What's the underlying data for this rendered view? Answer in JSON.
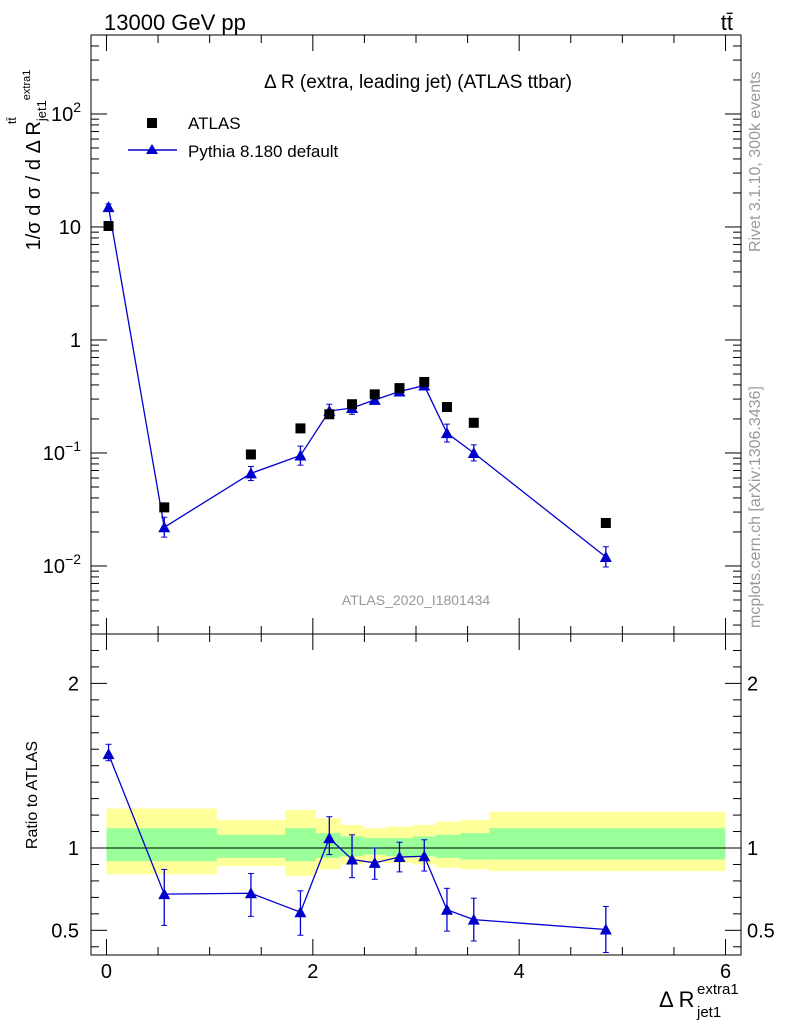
{
  "header": {
    "left": "13000 GeV pp",
    "right": "tt̄"
  },
  "side_labels": {
    "rivet": "Rivet 3.1.10,  300k events",
    "mcplots": "mcplots.cern.ch [arXiv:1306.3436]"
  },
  "plot_title": "Δ R (extra, leading jet) (ATLAS ttbar)",
  "watermark": "ATLAS_2020_I1801434",
  "legend": {
    "atlas": "ATLAS",
    "pythia": "Pythia 8.180 default"
  },
  "y_axis_main": {
    "ylabel_main": "d σ / d Δ R",
    "ylabel_prefix": "1/σ",
    "ylabel_sup_ttbar": "tt̄",
    "ylabel_sub": "jet1",
    "ylabel_sup_extra": "extra1"
  },
  "y_axis_ratio": {
    "label": "Ratio to ATLAS"
  },
  "x_axis": {
    "label_main": "Δ R",
    "label_sup": "extra1",
    "label_sub": "jet1"
  },
  "colors": {
    "mc": "#0000cc",
    "data": "#000000",
    "band_outer": "#ffff99",
    "band_inner": "#99ff99"
  },
  "chart_data": [
    {
      "type": "scatter",
      "panel": "main",
      "log_y": true,
      "xlim": [
        -0.15,
        6.15
      ],
      "ylim": [
        0.0025,
        500
      ],
      "x_ticks": [
        0,
        2,
        4,
        6
      ],
      "y_ticks": [
        {
          "value": 0.01,
          "label": "10^-2"
        },
        {
          "value": 0.1,
          "label": "10^-1"
        },
        {
          "value": 1,
          "label": "1"
        },
        {
          "value": 10,
          "label": "10"
        },
        {
          "value": 100,
          "label": "10^2"
        }
      ],
      "series": [
        {
          "name": "ATLAS",
          "marker": "square",
          "x": [
            0.02,
            0.56,
            1.4,
            1.88,
            2.16,
            2.38,
            2.6,
            2.84,
            3.08,
            3.3,
            3.56,
            4.84
          ],
          "y": [
            10.2,
            0.033,
            0.097,
            0.165,
            0.22,
            0.27,
            0.33,
            0.375,
            0.425,
            0.255,
            0.185,
            0.024
          ]
        },
        {
          "name": "Pythia 8.180 default",
          "marker": "triangle",
          "x": [
            0.02,
            0.56,
            1.4,
            1.88,
            2.16,
            2.38,
            2.6,
            2.84,
            3.08,
            3.3,
            3.56,
            4.84
          ],
          "y": [
            15.0,
            0.022,
            0.066,
            0.095,
            0.235,
            0.25,
            0.295,
            0.35,
            0.395,
            0.15,
            0.1,
            0.012
          ],
          "err_lo": [
            1.0,
            0.004,
            0.009,
            0.017,
            0.03,
            0.03,
            0.025,
            0.025,
            0.025,
            0.025,
            0.015,
            0.0022
          ],
          "err_hi": [
            1.0,
            0.005,
            0.01,
            0.02,
            0.035,
            0.035,
            0.03,
            0.03,
            0.03,
            0.03,
            0.018,
            0.0028
          ]
        }
      ]
    },
    {
      "type": "line",
      "panel": "ratio",
      "ylabel": "Ratio to ATLAS",
      "xlim": [
        -0.15,
        6.15
      ],
      "ylim": [
        0.35,
        2.3
      ],
      "x_ticks": [
        0,
        2,
        4,
        6
      ],
      "y_ticks": [
        0.5,
        1,
        2
      ],
      "reference_line": 1,
      "bands": [
        {
          "x0": 0.0,
          "x1": 1.07,
          "outer": [
            0.84,
            1.24
          ],
          "inner": [
            0.92,
            1.12
          ]
        },
        {
          "x0": 1.07,
          "x1": 1.73,
          "outer": [
            0.89,
            1.17
          ],
          "inner": [
            0.94,
            1.08
          ]
        },
        {
          "x0": 1.73,
          "x1": 2.03,
          "outer": [
            0.83,
            1.23
          ],
          "inner": [
            0.92,
            1.12
          ]
        },
        {
          "x0": 2.03,
          "x1": 2.27,
          "outer": [
            0.87,
            1.18
          ],
          "inner": [
            0.94,
            1.09
          ]
        },
        {
          "x0": 2.27,
          "x1": 2.49,
          "outer": [
            0.9,
            1.14
          ],
          "inner": [
            0.95,
            1.07
          ]
        },
        {
          "x0": 2.49,
          "x1": 2.71,
          "outer": [
            0.91,
            1.12
          ],
          "inner": [
            0.96,
            1.06
          ]
        },
        {
          "x0": 2.71,
          "x1": 2.97,
          "outer": [
            0.91,
            1.13
          ],
          "inner": [
            0.95,
            1.06
          ]
        },
        {
          "x0": 2.97,
          "x1": 3.19,
          "outer": [
            0.9,
            1.14
          ],
          "inner": [
            0.95,
            1.07
          ]
        },
        {
          "x0": 3.19,
          "x1": 3.43,
          "outer": [
            0.88,
            1.16
          ],
          "inner": [
            0.94,
            1.08
          ]
        },
        {
          "x0": 3.43,
          "x1": 3.71,
          "outer": [
            0.87,
            1.17
          ],
          "inner": [
            0.93,
            1.09
          ]
        },
        {
          "x0": 3.71,
          "x1": 6.0,
          "outer": [
            0.86,
            1.22
          ],
          "inner": [
            0.93,
            1.12
          ]
        }
      ],
      "series": [
        {
          "name": "Pythia 8.180 default",
          "x": [
            0.02,
            0.56,
            1.4,
            1.88,
            2.16,
            2.38,
            2.6,
            2.84,
            3.08,
            3.3,
            3.56,
            4.84
          ],
          "y": [
            1.57,
            0.72,
            0.725,
            0.61,
            1.06,
            0.93,
            0.91,
            0.945,
            0.95,
            0.625,
            0.565,
            0.505
          ],
          "err_lo": [
            0.04,
            0.19,
            0.14,
            0.14,
            0.1,
            0.11,
            0.1,
            0.09,
            0.09,
            0.13,
            0.13,
            0.14
          ],
          "err_hi": [
            0.06,
            0.15,
            0.12,
            0.13,
            0.13,
            0.15,
            0.09,
            0.09,
            0.1,
            0.13,
            0.13,
            0.14
          ]
        }
      ]
    }
  ]
}
